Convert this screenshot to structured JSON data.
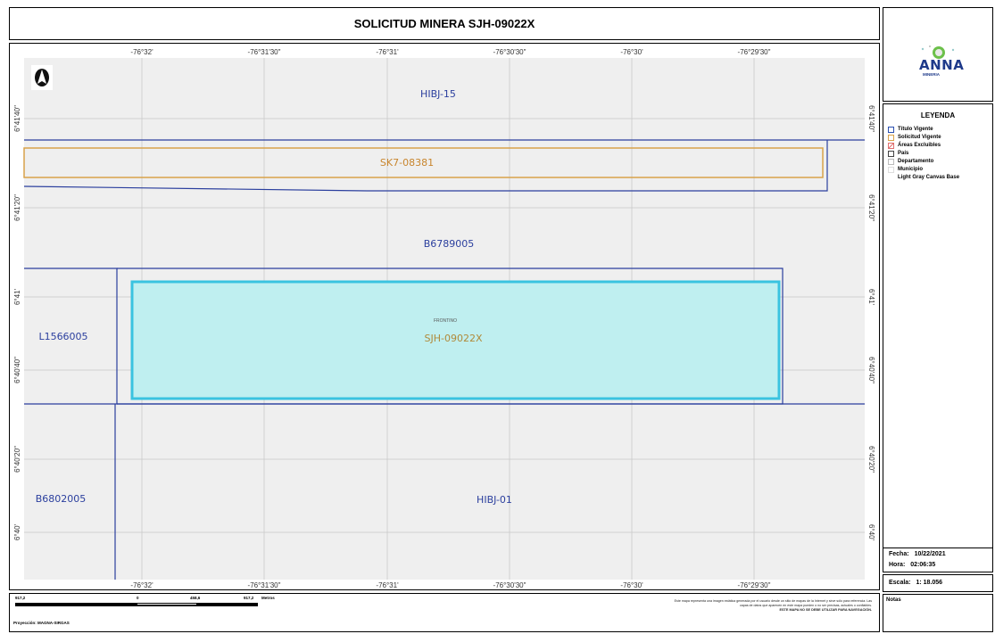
{
  "title": "SOLICITUD MINERA SJH-09022X",
  "logo": {
    "name": "ANNA",
    "subtitle": "MINERIA"
  },
  "coordinates": {
    "top": [
      "-76°32'",
      "-76°31'30\"",
      "-76°31'",
      "-76°30'30\"",
      "-76°30'",
      "-76°29'30\""
    ],
    "bottom": [
      "-76°32'",
      "-76°31'30\"",
      "-76°31'",
      "-76°30'30\"",
      "-76°30'",
      "-76°29'30\""
    ],
    "left": [
      "6°41'40\"",
      "6°41'20\"",
      "6°41'",
      "6°40'40\"",
      "6°40'20\"",
      "6°40'"
    ],
    "right": [
      "6°41'40\"",
      "6°41'20\"",
      "6°41'",
      "6°40'40\"",
      "6°40'20\"",
      "6°40'"
    ]
  },
  "polygons": {
    "hibj15": "HIBJ-15",
    "sk7": "SK7-08381",
    "b6789005": "B6789005",
    "l1566005": "L1566005",
    "frontino": "FRONTINO",
    "sjh": "SJH-09022X",
    "b6802005": "B6802005",
    "hibj01": "HIBJ-01"
  },
  "legend": {
    "title": "LEYENDA",
    "items": [
      "Título Vigente",
      "Solicitud Vigente",
      "Áreas Excluibles",
      "País",
      "Departamento",
      "Municipio",
      "Light Gray Canvas Base"
    ]
  },
  "info": {
    "fecha_label": "Fecha:",
    "fecha_value": "10/22/2021",
    "hora_label": "Hora:",
    "hora_value": "02:06:35",
    "escala_label": "Escala:",
    "escala_value": "1: 18.056",
    "notas_label": "Notas"
  },
  "scalebar": {
    "labels": [
      "917,2",
      "0",
      "458,6",
      "917,2"
    ],
    "unit": "Metros",
    "projection": "Proyección: MAGNA-SIRGAS"
  },
  "disclaimer": {
    "text": "Este mapa representa una imagen estática generada por el usuario desde un sitio de mapas de la Internet y sirve sólo para referencia. Las capas de datos que aparecen en este mapa pueden o no ser precisas, actuales o confiables.",
    "warning": "ESTE MAPA NO SE DEBE UTILIZAR PARA NAVEGACIÓN."
  },
  "colors": {
    "titulo": "#2b3f9e",
    "solicitud": "#d8a24a",
    "sjh_fill": "#bfeff0",
    "sjh_stroke": "#3ac3e0",
    "map_bg": "#efefef"
  }
}
